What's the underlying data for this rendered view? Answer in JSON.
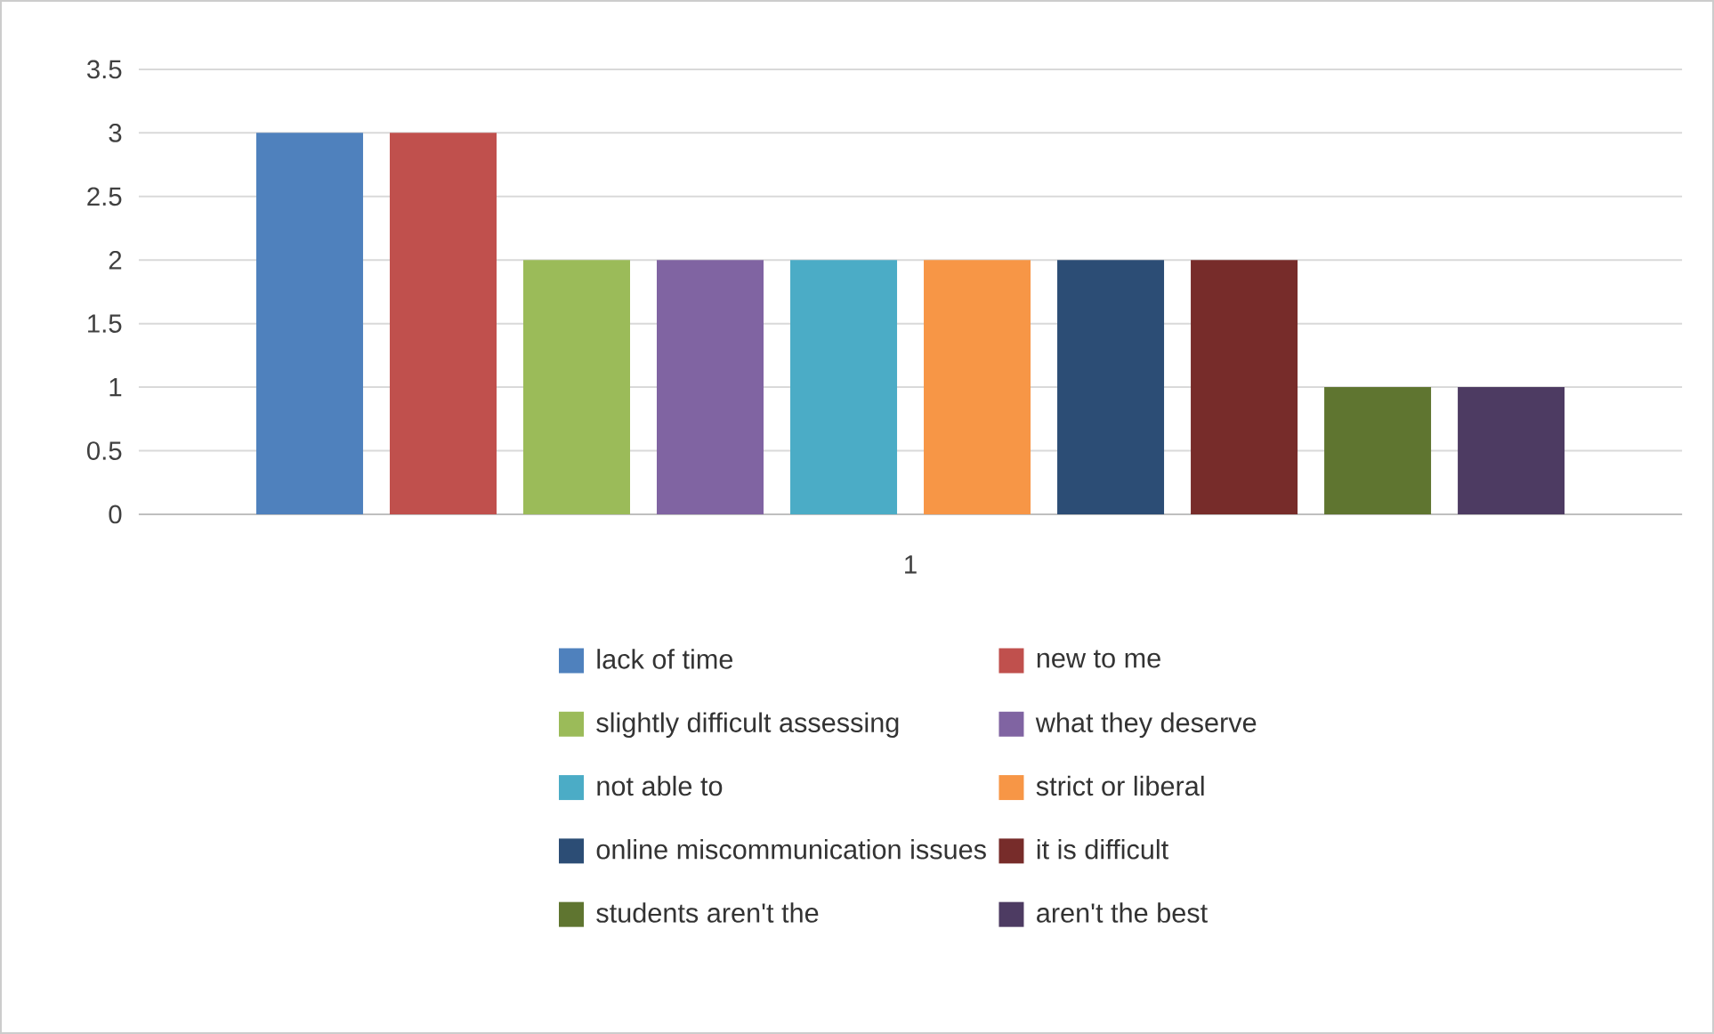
{
  "chart_data": {
    "type": "bar",
    "categories": [
      "1"
    ],
    "series": [
      {
        "name": "lack of time",
        "color": "#4f81bd",
        "values": [
          3
        ]
      },
      {
        "name": "new to me",
        "color": "#c0504d",
        "values": [
          3
        ]
      },
      {
        "name": "slightly difficult assessing",
        "color": "#9bbb59",
        "values": [
          2
        ]
      },
      {
        "name": "what they deserve",
        "color": "#8064a2",
        "values": [
          2
        ]
      },
      {
        "name": "not able to",
        "color": "#4bacc6",
        "values": [
          2
        ]
      },
      {
        "name": "strict or liberal",
        "color": "#f79646",
        "values": [
          2
        ]
      },
      {
        "name": "online miscommunication issues",
        "color": "#2c4d75",
        "values": [
          2
        ]
      },
      {
        "name": "it is difficult",
        "color": "#772c2a",
        "values": [
          2
        ]
      },
      {
        "name": "students aren't the",
        "color": "#5f7530",
        "values": [
          1
        ]
      },
      {
        "name": "aren't the best",
        "color": "#4d3b62",
        "values": [
          1
        ]
      }
    ],
    "ylim": [
      0,
      3.5
    ],
    "yticks": [
      0,
      0.5,
      1,
      1.5,
      2,
      2.5,
      3,
      3.5
    ],
    "grid": "y",
    "legend": "bottom"
  }
}
